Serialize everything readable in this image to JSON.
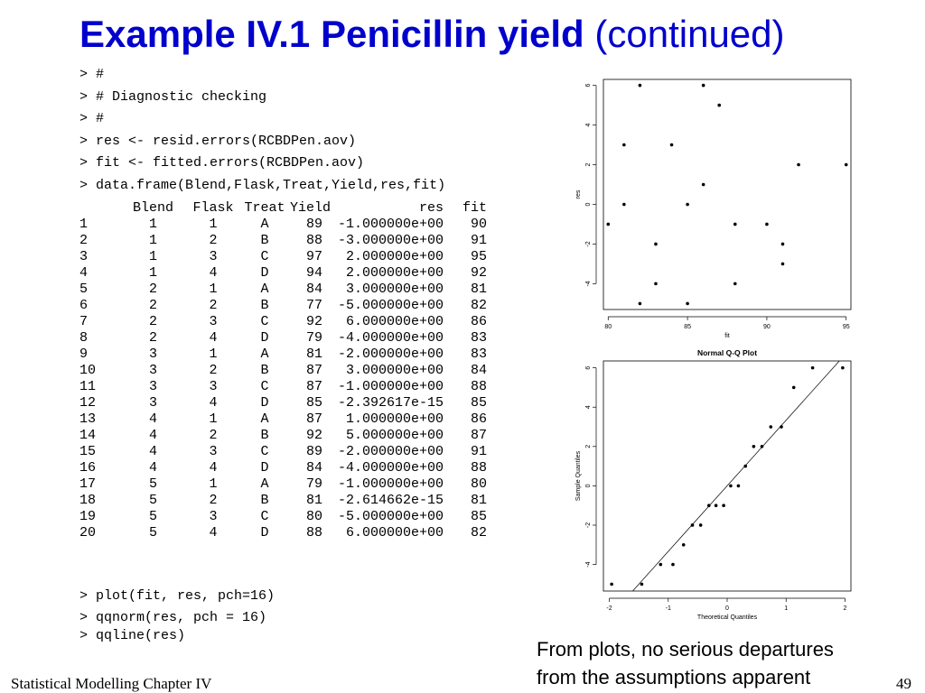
{
  "slide": {
    "title_bold": "Example IV.1 Penicillin yield",
    "title_normal": "(continued)",
    "footer": "Statistical Modelling   Chapter IV",
    "page_number": "49",
    "note_line1": "From plots, no serious departures",
    "note_line2": "from the assumptions apparent"
  },
  "code": {
    "lines_before": [
      "> #",
      "> # Diagnostic checking",
      "> #",
      "> res <- resid.errors(RCBDPen.aov)",
      "> fit <- fitted.errors(RCBDPen.aov)",
      "> data.frame(Blend,Flask,Treat,Yield,res,fit)"
    ],
    "lines_after": [
      "> plot(fit, res, pch=16)",
      "> qqnorm(res, pch = 16)",
      "> qqline(res)"
    ]
  },
  "table": {
    "headers": [
      "",
      "Blend",
      "Flask",
      "Treat",
      "Yield",
      "res",
      "fit"
    ],
    "rows": [
      [
        "1",
        "1",
        "1",
        "A",
        "89",
        "-1.000000e+00",
        "90"
      ],
      [
        "2",
        "1",
        "2",
        "B",
        "88",
        "-3.000000e+00",
        "91"
      ],
      [
        "3",
        "1",
        "3",
        "C",
        "97",
        "2.000000e+00",
        "95"
      ],
      [
        "4",
        "1",
        "4",
        "D",
        "94",
        "2.000000e+00",
        "92"
      ],
      [
        "5",
        "2",
        "1",
        "A",
        "84",
        "3.000000e+00",
        "81"
      ],
      [
        "6",
        "2",
        "2",
        "B",
        "77",
        "-5.000000e+00",
        "82"
      ],
      [
        "7",
        "2",
        "3",
        "C",
        "92",
        "6.000000e+00",
        "86"
      ],
      [
        "8",
        "2",
        "4",
        "D",
        "79",
        "-4.000000e+00",
        "83"
      ],
      [
        "9",
        "3",
        "1",
        "A",
        "81",
        "-2.000000e+00",
        "83"
      ],
      [
        "10",
        "3",
        "2",
        "B",
        "87",
        "3.000000e+00",
        "84"
      ],
      [
        "11",
        "3",
        "3",
        "C",
        "87",
        "-1.000000e+00",
        "88"
      ],
      [
        "12",
        "3",
        "4",
        "D",
        "85",
        "-2.392617e-15",
        "85"
      ],
      [
        "13",
        "4",
        "1",
        "A",
        "87",
        "1.000000e+00",
        "86"
      ],
      [
        "14",
        "4",
        "2",
        "B",
        "92",
        "5.000000e+00",
        "87"
      ],
      [
        "15",
        "4",
        "3",
        "C",
        "89",
        "-2.000000e+00",
        "91"
      ],
      [
        "16",
        "4",
        "4",
        "D",
        "84",
        "-4.000000e+00",
        "88"
      ],
      [
        "17",
        "5",
        "1",
        "A",
        "79",
        "-1.000000e+00",
        "80"
      ],
      [
        "18",
        "5",
        "2",
        "B",
        "81",
        "-2.614662e-15",
        "81"
      ],
      [
        "19",
        "5",
        "3",
        "C",
        "80",
        "-5.000000e+00",
        "85"
      ],
      [
        "20",
        "5",
        "4",
        "D",
        "88",
        "6.000000e+00",
        "82"
      ]
    ]
  },
  "chart_data": [
    {
      "type": "scatter",
      "title": "",
      "xlabel": "fit",
      "ylabel": "res",
      "xlim": [
        79.7,
        95.3
      ],
      "ylim": [
        -5.3,
        6.3
      ],
      "xticks": [
        "80",
        "85",
        "90",
        "95"
      ],
      "yticks": [
        "-4",
        "-2",
        "0",
        "2",
        "4",
        "6"
      ],
      "points": [
        [
          90,
          -1
        ],
        [
          91,
          -3
        ],
        [
          95,
          2
        ],
        [
          92,
          2
        ],
        [
          81,
          3
        ],
        [
          82,
          -5
        ],
        [
          86,
          6
        ],
        [
          83,
          -4
        ],
        [
          83,
          -2
        ],
        [
          84,
          3
        ],
        [
          88,
          -1
        ],
        [
          85,
          0
        ],
        [
          86,
          1
        ],
        [
          87,
          5
        ],
        [
          91,
          -2
        ],
        [
          88,
          -4
        ],
        [
          80,
          -1
        ],
        [
          81,
          0
        ],
        [
          85,
          -5
        ],
        [
          82,
          6
        ]
      ]
    },
    {
      "type": "scatter",
      "title": "Normal Q-Q Plot",
      "xlabel": "Theoretical Quantiles",
      "ylabel": "Sample Quantiles",
      "xlim": [
        -2.1,
        2.1
      ],
      "ylim": [
        -5.35,
        6.35
      ],
      "xticks": [
        "-2",
        "-1",
        "0",
        "1",
        "2"
      ],
      "yticks": [
        "-4",
        "-2",
        "0",
        "2",
        "4",
        "6"
      ],
      "points": [
        [
          -1.96,
          -5
        ],
        [
          -1.45,
          -5
        ],
        [
          -1.13,
          -4
        ],
        [
          -0.92,
          -4
        ],
        [
          -0.74,
          -3
        ],
        [
          -0.59,
          -2
        ],
        [
          -0.45,
          -2
        ],
        [
          -0.31,
          -1
        ],
        [
          -0.19,
          -1
        ],
        [
          -0.06,
          -1
        ],
        [
          0.06,
          0
        ],
        [
          0.19,
          0
        ],
        [
          0.31,
          1
        ],
        [
          0.45,
          2
        ],
        [
          0.59,
          2
        ],
        [
          0.74,
          3
        ],
        [
          0.92,
          3
        ],
        [
          1.13,
          5
        ],
        [
          1.45,
          6
        ],
        [
          1.96,
          6
        ]
      ],
      "reference_line": {
        "intercept": 0.0,
        "slope": 3.336
      }
    }
  ]
}
